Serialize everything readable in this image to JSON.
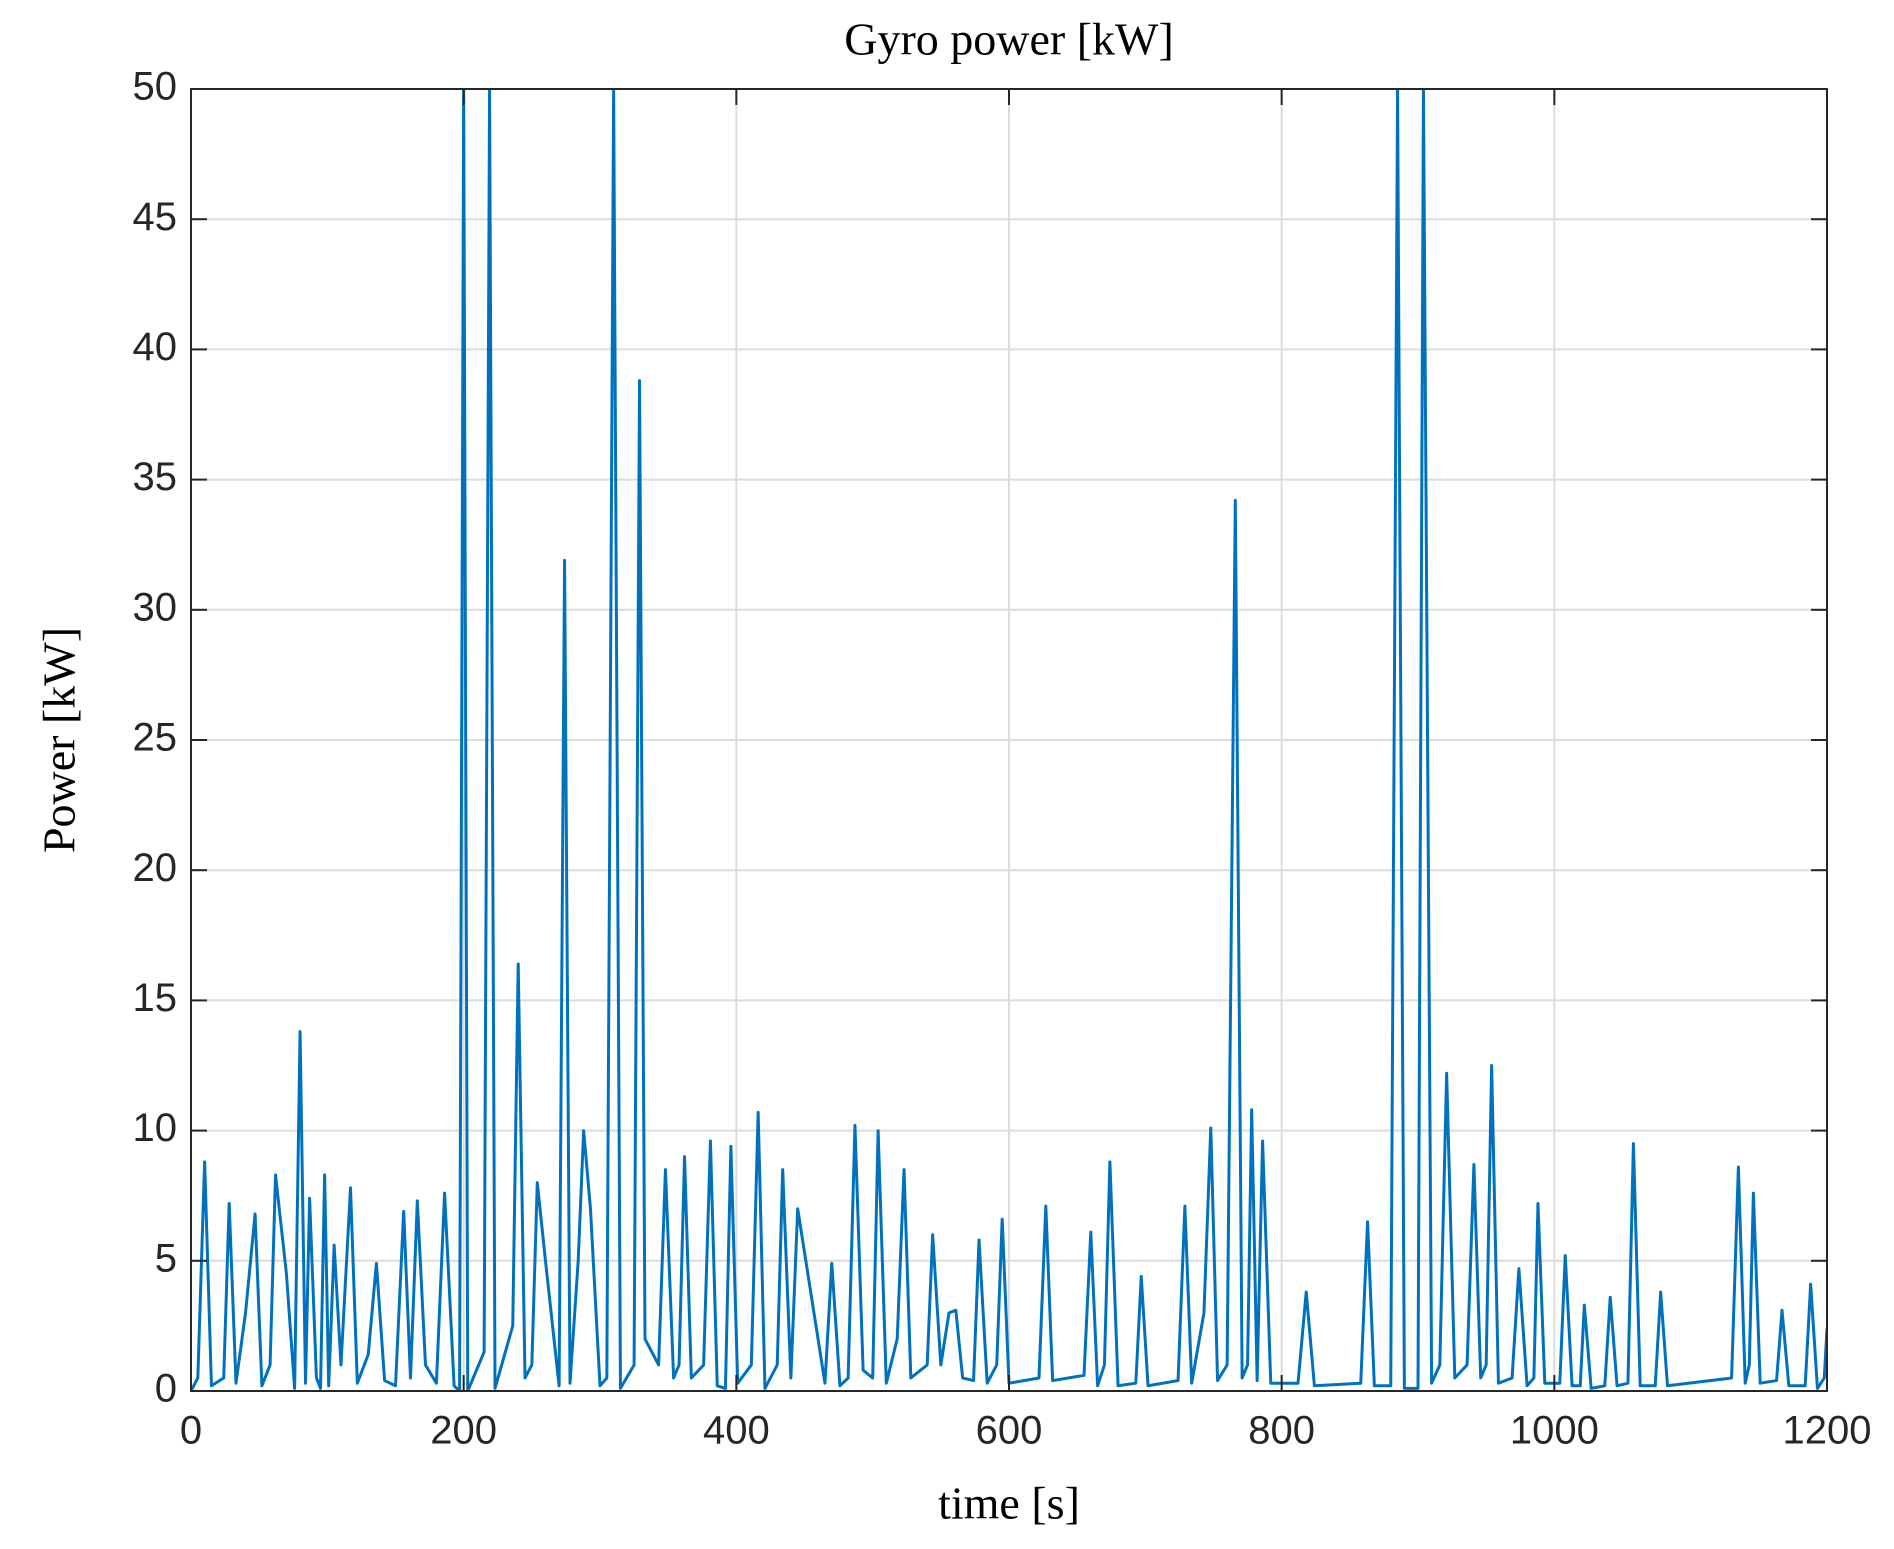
{
  "chart_data": {
    "type": "line",
    "title": "Gyro power [kW]",
    "x_label": "time [s]",
    "y_label": "Power [kW]",
    "xlim": [
      0,
      1200
    ],
    "xticks": [
      0,
      200,
      400,
      600,
      800,
      1000,
      1200
    ],
    "ylim": [
      0,
      50
    ],
    "yticks": [
      0,
      5,
      10,
      15,
      20,
      25,
      30,
      35,
      40,
      45,
      50
    ],
    "grid": true,
    "series": [
      {
        "color": "#0072bd",
        "x": [
          0,
          5,
          10,
          15,
          24,
          28,
          33,
          40,
          47,
          52,
          58,
          62,
          70,
          76,
          80,
          84,
          87,
          92,
          95,
          98,
          101,
          105,
          110,
          117,
          122,
          130,
          136,
          142,
          150,
          156,
          161,
          166,
          172,
          180,
          186,
          193,
          197,
          200,
          203,
          215,
          219,
          223,
          236,
          240,
          245,
          250,
          254,
          260,
          270,
          274,
          278,
          284,
          288,
          293,
          300,
          305,
          310,
          315,
          325,
          329,
          333,
          343,
          348,
          354,
          358,
          362,
          367,
          376,
          381,
          386,
          392,
          396,
          401,
          411,
          416,
          421,
          430,
          434,
          440,
          445,
          465,
          470,
          476,
          482,
          487,
          493,
          500,
          504,
          510,
          518,
          523,
          528,
          540,
          544,
          550,
          556,
          561,
          566,
          574,
          578,
          584,
          591,
          595,
          600,
          622,
          627,
          632,
          655,
          660,
          665,
          670,
          674,
          680,
          693,
          697,
          702,
          724,
          729,
          734,
          743,
          748,
          753,
          760,
          766,
          771,
          775,
          778,
          782,
          786,
          792,
          812,
          818,
          824,
          858,
          863,
          868,
          880,
          885,
          890,
          900,
          904,
          910,
          916,
          921,
          927,
          936,
          941,
          946,
          950,
          954,
          959,
          969,
          974,
          980,
          985,
          988,
          993,
          1004,
          1008,
          1013,
          1019,
          1022,
          1027,
          1037,
          1041,
          1046,
          1054,
          1058,
          1063,
          1074,
          1078,
          1083,
          1130,
          1135,
          1140,
          1143,
          1146,
          1151,
          1163,
          1167,
          1172,
          1184,
          1188,
          1193,
          1198,
          1200
        ],
        "values": [
          0,
          0.5,
          8.8,
          0.2,
          0.5,
          7.2,
          0.3,
          3,
          6.8,
          0.2,
          1,
          8.3,
          4.5,
          0.1,
          13.8,
          0.3,
          7.4,
          0.5,
          0.1,
          8.3,
          0.2,
          5.6,
          1,
          7.8,
          0.3,
          1.4,
          4.9,
          0.4,
          0.2,
          6.9,
          0.5,
          7.3,
          1,
          0.3,
          7.6,
          0.2,
          0,
          50,
          0,
          1.5,
          50,
          0.1,
          2.5,
          16.4,
          0.5,
          1,
          8.0,
          5,
          0.2,
          31.9,
          0.3,
          5,
          10,
          7,
          0.2,
          0.5,
          50,
          0.1,
          1,
          38.8,
          2,
          1,
          8.5,
          0.5,
          1,
          9.0,
          0.5,
          1,
          9.6,
          0.2,
          0.1,
          9.4,
          0.3,
          1,
          10.7,
          0.1,
          1,
          8.5,
          0.5,
          7,
          0.3,
          4.9,
          0.2,
          0.5,
          10.2,
          0.8,
          0.5,
          10,
          0.3,
          2,
          8.5,
          0.5,
          1,
          6,
          1,
          3,
          3.1,
          0.5,
          0.4,
          5.8,
          0.3,
          1,
          6.6,
          0.3,
          0.5,
          7.1,
          0.4,
          0.6,
          6.1,
          0.2,
          1,
          8.8,
          0.2,
          0.3,
          4.4,
          0.2,
          0.4,
          7.1,
          0.3,
          3,
          10.1,
          0.4,
          1,
          34.2,
          0.5,
          1,
          10.8,
          0.4,
          9.6,
          0.3,
          0.3,
          3.8,
          0.2,
          0.3,
          6.5,
          0.2,
          0.2,
          50,
          0.1,
          0.1,
          50,
          0.3,
          1,
          12.2,
          0.5,
          1,
          8.7,
          0.5,
          1,
          12.5,
          0.3,
          0.5,
          4.7,
          0.2,
          0.5,
          7.2,
          0.3,
          0.3,
          5.2,
          0.2,
          0.2,
          3.3,
          0.1,
          0.2,
          3.6,
          0.2,
          0.3,
          9.5,
          0.2,
          0.2,
          3.8,
          0.2,
          0.5,
          8.6,
          0.3,
          1,
          7.6,
          0.3,
          0.4,
          3.1,
          0.2,
          0.2,
          4.1,
          0.1,
          0.5,
          2.4
        ]
      }
    ]
  }
}
